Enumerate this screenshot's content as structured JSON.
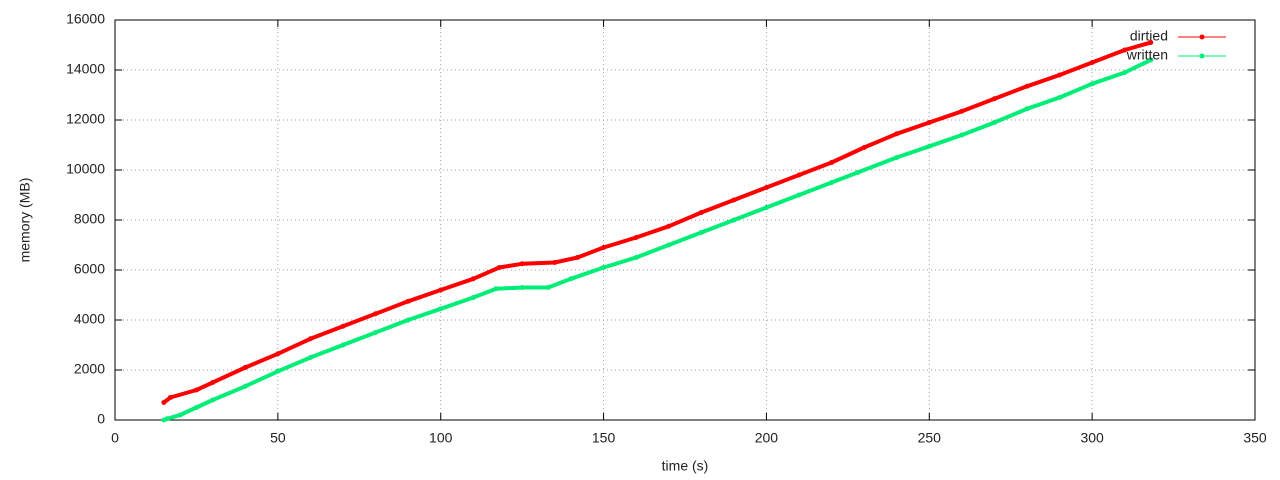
{
  "chart_data": {
    "type": "line",
    "xlabel": "time (s)",
    "ylabel": "memory (MB)",
    "xlim": [
      0,
      350
    ],
    "xticks": [
      0,
      50,
      100,
      150,
      200,
      250,
      300,
      350
    ],
    "ylim": [
      0,
      16000
    ],
    "yticks": [
      0,
      2000,
      4000,
      6000,
      8000,
      10000,
      12000,
      14000,
      16000
    ],
    "grid": true,
    "legend": "top right",
    "series": [
      {
        "name": "dirtied",
        "color": "#ff0000",
        "x": [
          15,
          17,
          25,
          30,
          40,
          50,
          60,
          70,
          80,
          90,
          100,
          110,
          118,
          125,
          135,
          142,
          150,
          160,
          170,
          180,
          190,
          200,
          210,
          220,
          230,
          240,
          250,
          260,
          270,
          280,
          290,
          300,
          310,
          318
        ],
        "values": [
          700,
          900,
          1200,
          1500,
          2100,
          2650,
          3250,
          3750,
          4250,
          4750,
          5200,
          5650,
          6100,
          6250,
          6300,
          6500,
          6900,
          7300,
          7750,
          8300,
          8800,
          9300,
          9800,
          10300,
          10900,
          11450,
          11900,
          12350,
          12850,
          13350,
          13800,
          14300,
          14800,
          15100
        ]
      },
      {
        "name": "written",
        "color": "#00ee77",
        "x": [
          15,
          16,
          20,
          25,
          30,
          40,
          50,
          60,
          70,
          80,
          90,
          100,
          110,
          117,
          125,
          133,
          140,
          150,
          160,
          170,
          180,
          190,
          200,
          210,
          220,
          228,
          240,
          250,
          260,
          270,
          280,
          290,
          300,
          310,
          318
        ],
        "values": [
          0,
          50,
          200,
          500,
          800,
          1350,
          1950,
          2500,
          3000,
          3500,
          4000,
          4450,
          4900,
          5250,
          5300,
          5300,
          5650,
          6100,
          6500,
          7000,
          7500,
          8000,
          8500,
          9000,
          9500,
          9900,
          10500,
          10950,
          11400,
          11900,
          12450,
          12900,
          13450,
          13900,
          14400
        ]
      }
    ]
  }
}
